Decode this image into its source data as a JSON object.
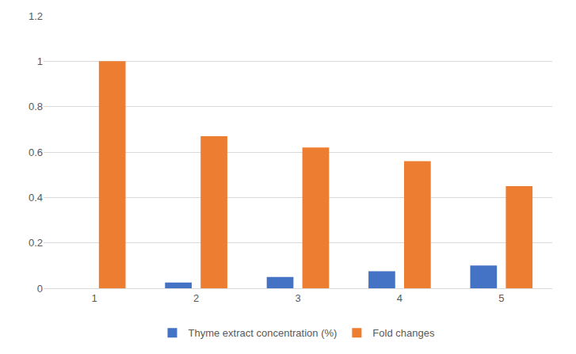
{
  "chart_data": {
    "type": "bar",
    "categories": [
      "1",
      "2",
      "3",
      "4",
      "5"
    ],
    "series": [
      {
        "name": "Thyme extract concentration (%)",
        "color": "#4472c4",
        "values": [
          0,
          0.025,
          0.05,
          0.075,
          0.1
        ]
      },
      {
        "name": "Fold changes",
        "color": "#ed7d31",
        "values": [
          1,
          0.67,
          0.62,
          0.56,
          0.45
        ]
      }
    ],
    "ylim": [
      0,
      1.2
    ],
    "yticks": [
      0,
      0.2,
      0.4,
      0.6,
      0.8,
      1,
      1.2
    ],
    "grid": true,
    "legend": "bottom"
  }
}
